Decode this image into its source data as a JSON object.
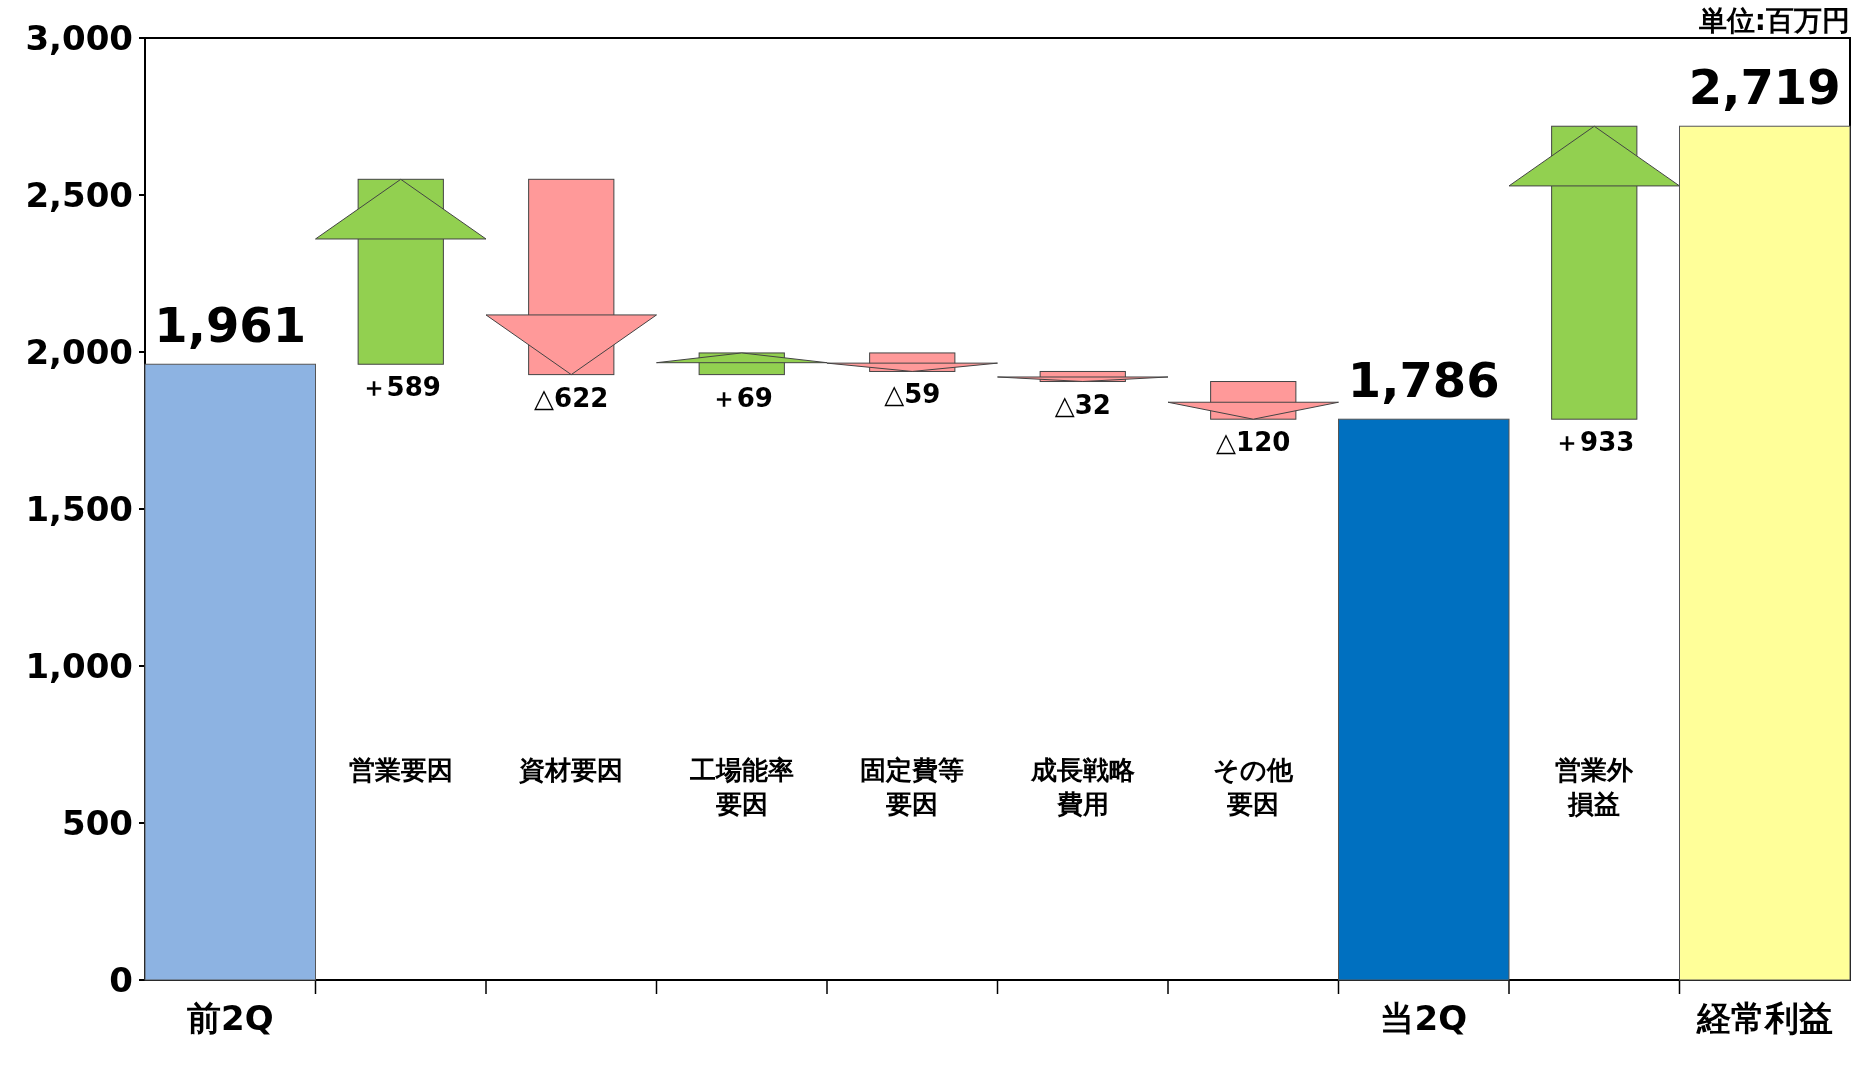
{
  "chart_data": {
    "type": "bar",
    "annotations": [
      "単位:百万円"
    ],
    "categories": [
      "前2Q",
      "営業要因",
      "資材要因",
      "工場能率要因",
      "固定費等要因",
      "成長戦略費用",
      "その他要因",
      "当2Q",
      "営業外損益",
      "経常利益"
    ],
    "base": [
      0,
      1961,
      2550,
      1928,
      1997,
      1938,
      1906,
      0,
      1786,
      0
    ],
    "values": [
      1961,
      589,
      -622,
      69,
      -59,
      -32,
      -120,
      1786,
      933,
      2719
    ],
    "colors": [
      "#8db3e2",
      "#92d050",
      "#ff9999",
      "#92d050",
      "#ff9999",
      "#ff9999",
      "#ff9999",
      "#0070c0",
      "#92d050",
      "#ffff99"
    ],
    "value_labels": [
      "1,961",
      "＋589",
      "△622",
      "＋69",
      "△59",
      "△32",
      "△120",
      "1,786",
      "＋933",
      "2,719"
    ],
    "ylim": [
      0,
      3000
    ],
    "yticks": [
      0,
      {
        "value": 500,
        "label": "500"
      },
      {
        "value": 1000,
        "label": "1,000"
      },
      {
        "value": 1500,
        "label": "1,500"
      },
      {
        "value": 2000,
        "label": "2,000"
      },
      {
        "value": 2500,
        "label": "2,500"
      },
      {
        "value": 3000,
        "label": "3,000"
      }
    ],
    "grid": false
  }
}
